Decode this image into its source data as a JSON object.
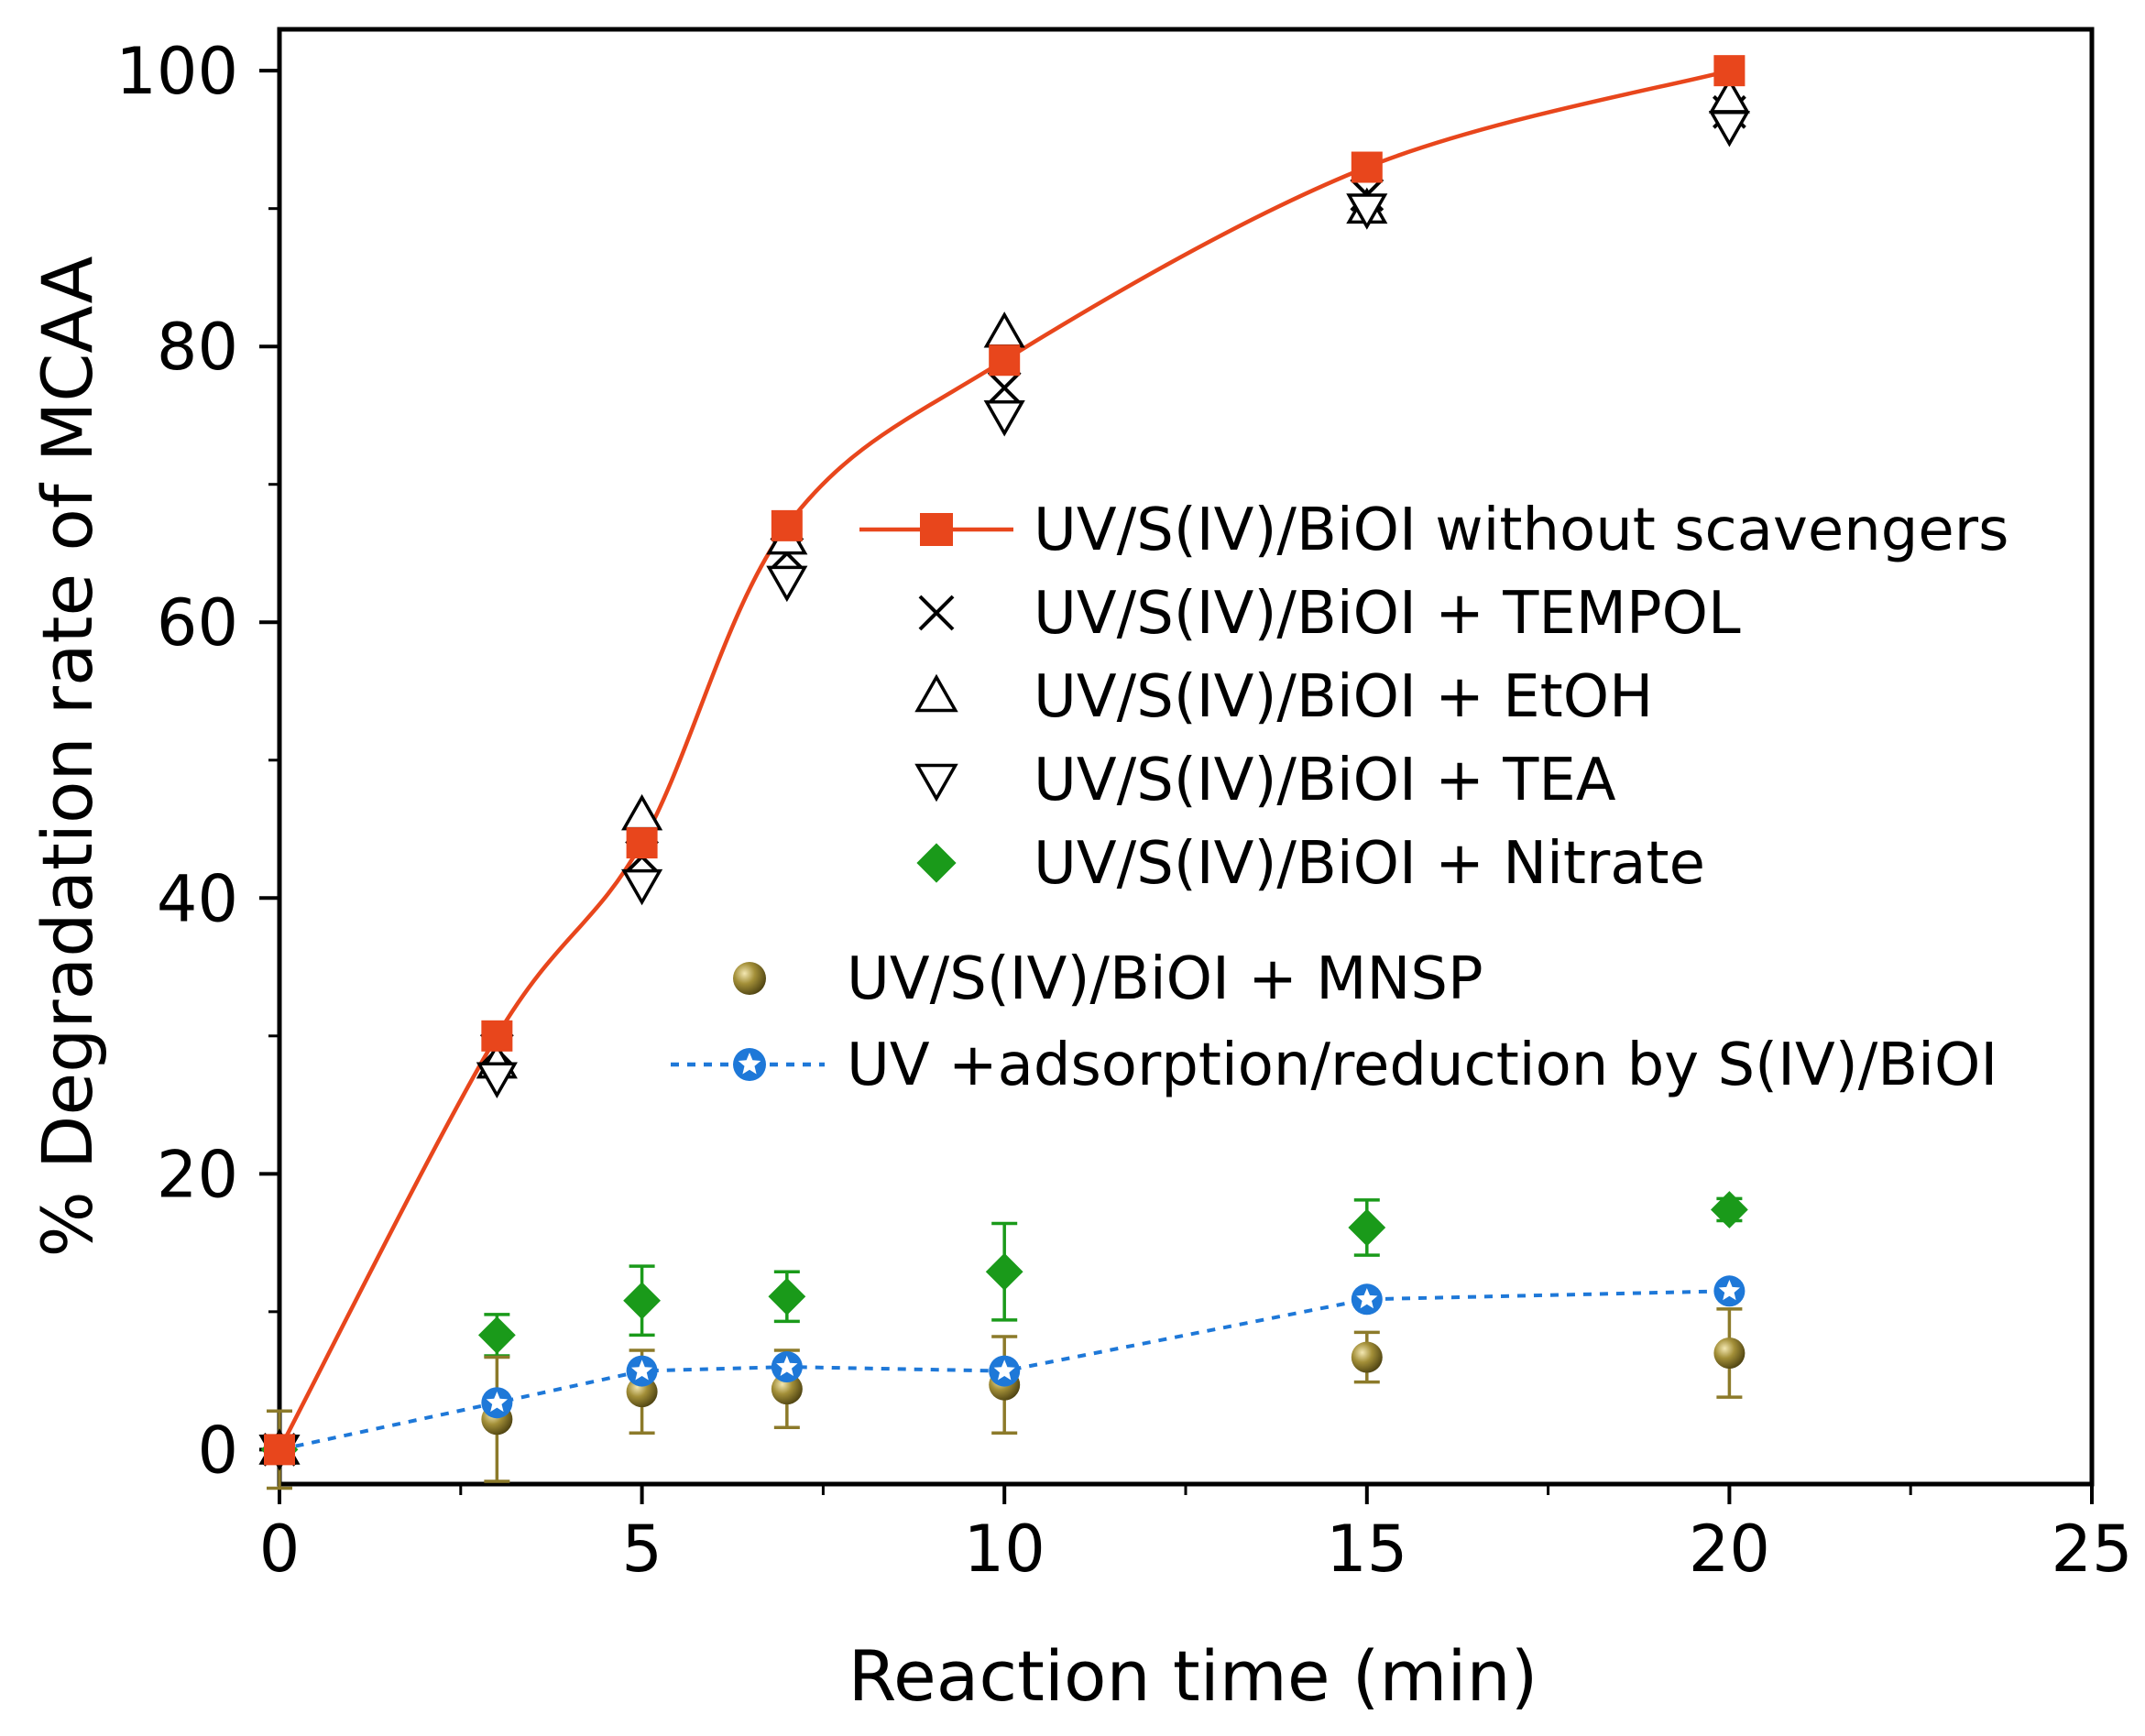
{
  "chart_data": {
    "type": "scatter",
    "title": "",
    "xlabel": "Reaction time (min)",
    "ylabel": "% Degradation rate of MCAA",
    "xlim": [
      0,
      25
    ],
    "ylim": [
      -2.5,
      103
    ],
    "x_ticks": [
      0,
      5,
      10,
      15,
      20,
      25
    ],
    "y_ticks": [
      0,
      20,
      40,
      60,
      80,
      100
    ],
    "series": [
      {
        "name": "UV/S(IV)/BiOI without scavengers",
        "marker": "square",
        "color": "#e8461c",
        "line": "solid",
        "x": [
          0,
          3,
          5,
          7,
          10,
          15,
          20
        ],
        "y": [
          0,
          30,
          44,
          67,
          79,
          93,
          100
        ],
        "err": []
      },
      {
        "name": "UV/S(IV)/BiOI + TEMPOL",
        "marker": "x",
        "color": "#000000",
        "line": "none",
        "x": [
          0,
          3,
          5,
          7,
          10,
          15,
          20
        ],
        "y": [
          0,
          29,
          43,
          65,
          77,
          91,
          97
        ],
        "err": []
      },
      {
        "name": "UV/S(IV)/BiOI + EtOH",
        "marker": "triangle-up",
        "color": "#000000",
        "line": "none",
        "x": [
          0,
          3,
          5,
          7,
          10,
          15,
          20
        ],
        "y": [
          0,
          28,
          46,
          66,
          81,
          90,
          98
        ],
        "err": []
      },
      {
        "name": "UV/S(IV)/BiOI + TEA",
        "marker": "triangle-down",
        "color": "#000000",
        "line": "none",
        "x": [
          0,
          3,
          5,
          7,
          10,
          15,
          20
        ],
        "y": [
          0,
          27,
          41,
          63,
          75,
          90,
          96
        ],
        "err": []
      },
      {
        "name": "UV/S(IV)/BiOI + Nitrate",
        "marker": "diamond",
        "color": "#1a9a1a",
        "line": "none",
        "x": [
          0,
          3,
          5,
          7,
          10,
          15,
          20
        ],
        "y": [
          0,
          8.3,
          10.8,
          11.1,
          12.9,
          16.1,
          17.4
        ],
        "err": [
          0.5,
          1.5,
          2.5,
          1.8,
          3.5,
          2.0,
          0.8
        ]
      },
      {
        "name": "UV/S(IV)/BiOI + MNSP",
        "marker": "sphere",
        "color": "#8c7a2a",
        "line": "none",
        "x": [
          0,
          3,
          5,
          7,
          10,
          15,
          20
        ],
        "y": [
          0,
          2.2,
          4.2,
          4.4,
          4.7,
          6.7,
          7.0
        ],
        "err": [
          2.8,
          4.5,
          3.0,
          2.8,
          3.5,
          1.8,
          3.2
        ]
      },
      {
        "name": "UV +adsorption/reduction by S(IV)/BiOI",
        "marker": "star-circle",
        "color": "#1e78d8",
        "line": "dotted",
        "x": [
          0,
          3,
          5,
          7,
          10,
          15,
          20
        ],
        "y": [
          0,
          3.4,
          5.7,
          6.0,
          5.7,
          10.9,
          11.5
        ],
        "err": []
      }
    ]
  }
}
